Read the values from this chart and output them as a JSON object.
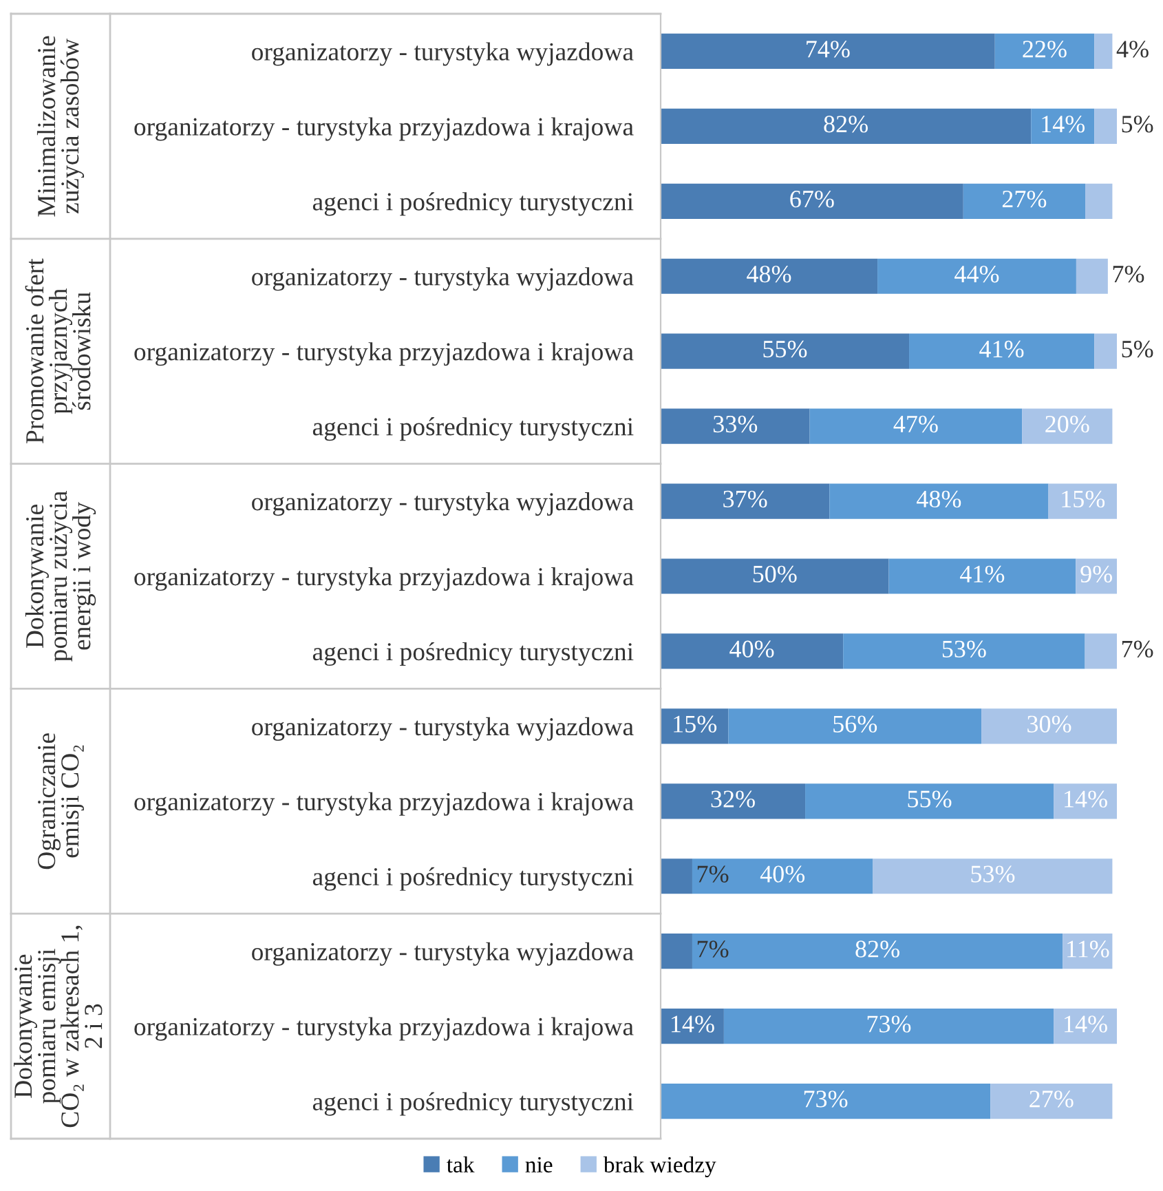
{
  "chart_data": [
    {
      "type": "bar",
      "orientation": "horizontal",
      "stacked": true,
      "title": "Minimalizowanie zużycia zasobów",
      "tick_labels": "y",
      "legend": false,
      "categories": [
        "organizatorzy - turystyka wyjazdowa",
        "organizatorzy - turystyka przyjazdowa i krajowa",
        "agenci i pośrednicy turystyczni"
      ],
      "series": [
        {
          "color": "#4a7db4",
          "values": [
            74,
            82,
            67
          ],
          "value_labels": [
            "74%",
            "82%",
            "67%"
          ]
        },
        {
          "color": "#5b9bd5",
          "values": [
            22,
            14,
            27
          ],
          "value_labels": [
            "22%",
            "14%",
            "27%"
          ]
        },
        {
          "color": "#a9c4e8",
          "values": [
            4,
            5,
            6
          ],
          "value_labels": [
            "4%",
            "5%",
            null
          ]
        }
      ]
    },
    {
      "type": "bar",
      "orientation": "horizontal",
      "stacked": true,
      "title": "Promowanie ofert przyjaznych środowisku",
      "tick_labels": "y",
      "legend": false,
      "categories": [
        "organizatorzy - turystyka wyjazdowa",
        "organizatorzy - turystyka przyjazdowa i krajowa",
        "agenci i pośrednicy turystyczni"
      ],
      "series": [
        {
          "color": "#4a7db4",
          "values": [
            48,
            55,
            33
          ],
          "value_labels": [
            "48%",
            "55%",
            "33%"
          ]
        },
        {
          "color": "#5b9bd5",
          "values": [
            44,
            41,
            47
          ],
          "value_labels": [
            "44%",
            "41%",
            "47%"
          ]
        },
        {
          "color": "#a9c4e8",
          "values": [
            7,
            5,
            20
          ],
          "value_labels": [
            "7%",
            "5%",
            "20%"
          ]
        }
      ]
    },
    {
      "type": "bar",
      "orientation": "horizontal",
      "stacked": true,
      "title": "Dokonywanie pomiaru zużycia energii i wody",
      "tick_labels": "y",
      "legend": false,
      "categories": [
        "organizatorzy - turystyka wyjazdowa",
        "organizatorzy - turystyka przyjazdowa i krajowa",
        "agenci i pośrednicy turystyczni"
      ],
      "series": [
        {
          "color": "#4a7db4",
          "values": [
            37,
            50,
            40
          ],
          "value_labels": [
            "37%",
            "50%",
            "40%"
          ]
        },
        {
          "color": "#5b9bd5",
          "values": [
            48,
            41,
            53
          ],
          "value_labels": [
            "48%",
            "41%",
            "53%"
          ]
        },
        {
          "color": "#a9c4e8",
          "values": [
            15,
            9,
            7
          ],
          "value_labels": [
            "15%",
            "9%",
            "7%"
          ]
        }
      ]
    },
    {
      "type": "bar",
      "orientation": "horizontal",
      "stacked": true,
      "title": "Ograniczanie emisji CO₂",
      "tick_labels": "y",
      "legend": false,
      "categories": [
        "organizatorzy - turystyka wyjazdowa",
        "organizatorzy - turystyka przyjazdowa i krajowa",
        "agenci i pośrednicy turystyczni"
      ],
      "series": [
        {
          "color": "#4a7db4",
          "values": [
            15,
            32,
            7
          ],
          "value_labels": [
            "15%",
            "32%",
            "7%"
          ]
        },
        {
          "color": "#5b9bd5",
          "values": [
            56,
            55,
            40
          ],
          "value_labels": [
            "56%",
            "55%",
            "40%"
          ]
        },
        {
          "color": "#a9c4e8",
          "values": [
            30,
            14,
            53
          ],
          "value_labels": [
            "30%",
            "14%",
            "53%"
          ]
        }
      ]
    },
    {
      "type": "bar",
      "orientation": "horizontal",
      "stacked": true,
      "title": "Dokonywanie pomiaru emisji CO₂ w zakresach 1, 2 i 3",
      "tick_labels": "y",
      "legend": "bottom",
      "categories": [
        "organizatorzy - turystyka wyjazdowa",
        "organizatorzy - turystyka przyjazdowa i krajowa",
        "agenci i pośrednicy turystyczni"
      ],
      "series": [
        {
          "name": "tak",
          "color": "#4a7db4",
          "values": [
            7,
            14,
            0
          ],
          "value_labels": [
            "7%",
            "14%",
            null
          ]
        },
        {
          "name": "nie",
          "color": "#5b9bd5",
          "values": [
            82,
            73,
            73
          ],
          "value_labels": [
            "82%",
            "73%",
            "73%"
          ]
        },
        {
          "name": "brak wiedzy",
          "color": "#a9c4e8",
          "values": [
            11,
            14,
            27
          ],
          "value_labels": [
            "11%",
            "14%",
            "27%"
          ]
        }
      ]
    }
  ]
}
